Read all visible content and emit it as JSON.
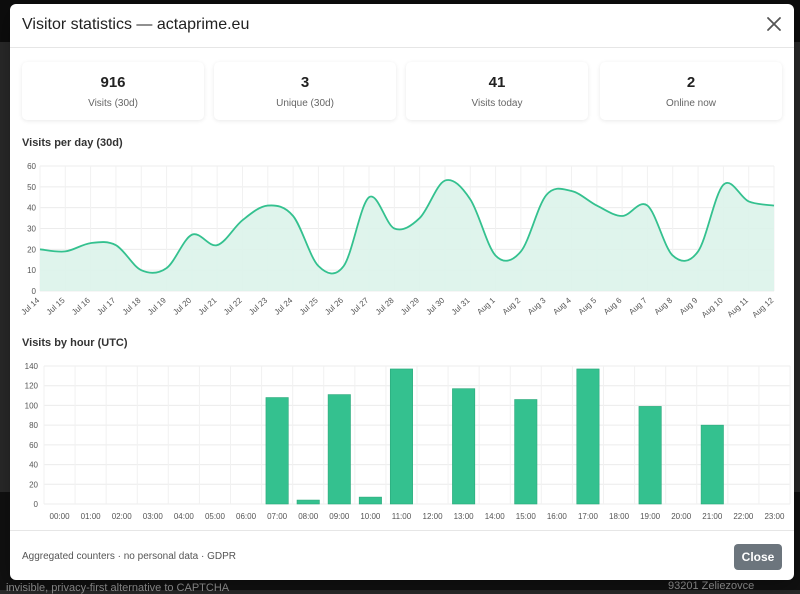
{
  "backdrop": {
    "footer_left": "invisible, privacy-first alternative to CAPTCHA",
    "footer_right": "93201 Zeliezovce"
  },
  "modal": {
    "title": "Visitor statistics — actaprime.eu",
    "close_icon": "close-icon"
  },
  "stats": [
    {
      "value": "916",
      "label": "Visits (30d)"
    },
    {
      "value": "3",
      "label": "Unique (30d)"
    },
    {
      "value": "41",
      "label": "Visits today"
    },
    {
      "value": "2",
      "label": "Online now"
    }
  ],
  "daily_title": "Visits per day (30d)",
  "hourly_title": "Visits by hour (UTC)",
  "footer": {
    "note": "Aggregated counters · no personal data · GDPR",
    "close_label": "Close"
  },
  "colors": {
    "accent": "#34c18f",
    "accent_fill": "#dcf3ea"
  },
  "chart_data": [
    {
      "type": "area",
      "title": "Visits per day (30d)",
      "xlabel": "",
      "ylabel": "",
      "ylim": [
        0,
        60
      ],
      "yticks": [
        0,
        10,
        20,
        30,
        40,
        50,
        60
      ],
      "grid": true,
      "categories": [
        "Jul 14",
        "Jul 15",
        "Jul 16",
        "Jul 17",
        "Jul 18",
        "Jul 19",
        "Jul 20",
        "Jul 21",
        "Jul 22",
        "Jul 23",
        "Jul 24",
        "Jul 25",
        "Jul 26",
        "Jul 27",
        "Jul 28",
        "Jul 29",
        "Jul 30",
        "Jul 31",
        "Aug 1",
        "Aug 2",
        "Aug 3",
        "Aug 4",
        "Aug 5",
        "Aug 6",
        "Aug 7",
        "Aug 8",
        "Aug 9",
        "Aug 10",
        "Aug 11",
        "Aug 12"
      ],
      "values": [
        20,
        19,
        23,
        22,
        10,
        11,
        27,
        22,
        34,
        41,
        36,
        12,
        12,
        45,
        30,
        35,
        53,
        44,
        17,
        19,
        46,
        48,
        41,
        36,
        41,
        17,
        19,
        51,
        43,
        41
      ]
    },
    {
      "type": "bar",
      "title": "Visits by hour (UTC)",
      "xlabel": "",
      "ylabel": "",
      "ylim": [
        0,
        140
      ],
      "yticks": [
        0,
        20,
        40,
        60,
        80,
        100,
        120,
        140
      ],
      "grid": true,
      "categories": [
        "00:00",
        "01:00",
        "02:00",
        "03:00",
        "04:00",
        "05:00",
        "06:00",
        "07:00",
        "08:00",
        "09:00",
        "10:00",
        "11:00",
        "12:00",
        "13:00",
        "14:00",
        "15:00",
        "16:00",
        "17:00",
        "18:00",
        "19:00",
        "20:00",
        "21:00",
        "22:00",
        "23:00"
      ],
      "values": [
        0,
        0,
        0,
        0,
        0,
        0,
        0,
        108,
        4,
        111,
        7,
        137,
        0,
        117,
        0,
        106,
        0,
        137,
        0,
        99,
        0,
        80,
        0,
        0
      ]
    }
  ]
}
